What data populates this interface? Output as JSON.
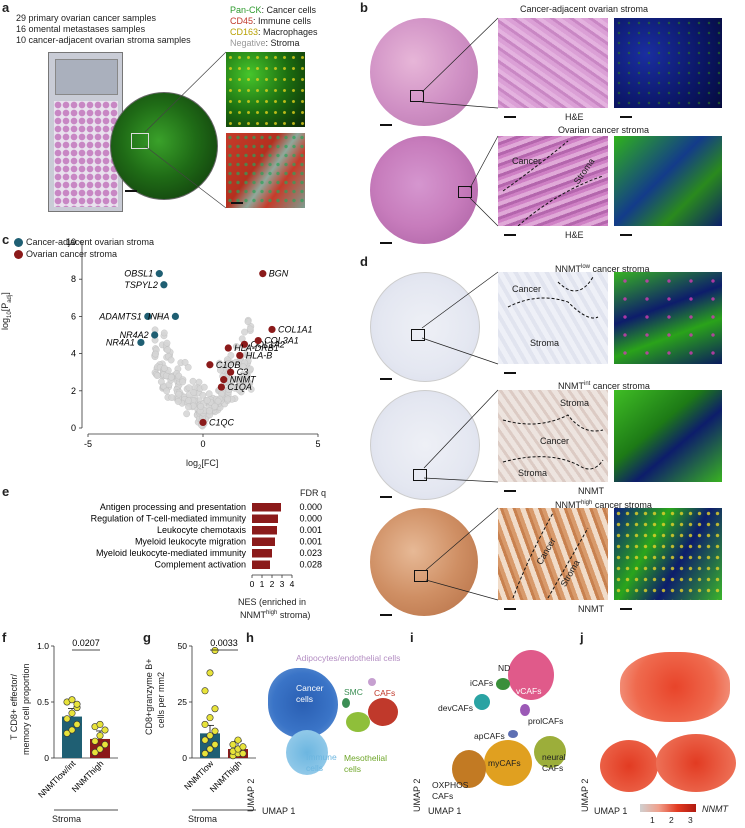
{
  "panels": {
    "a": "a",
    "b": "b",
    "c": "c",
    "d": "d",
    "e": "e",
    "f": "f",
    "g": "g",
    "h": "h",
    "i": "i",
    "j": "j"
  },
  "a": {
    "lines": [
      "29 primary ovarian cancer samples",
      "16 omental metastases samples",
      "10 cancer-adjacent ovarian stroma samples"
    ],
    "legend": [
      {
        "marker": "Pan-CK",
        "desc": ": Cancer cells",
        "color": "#2e9b2e"
      },
      {
        "marker": "CD45",
        "desc": ": Immune cells",
        "color": "#c0392b"
      },
      {
        "marker": "CD163",
        "desc": ": Macrophages",
        "color": "#b8a000"
      },
      {
        "marker": "Negative",
        "desc": ": Stroma",
        "color": "#999999"
      }
    ]
  },
  "b": {
    "title_top": "Cancer-adjacent ovarian stroma",
    "he_top": "H&E",
    "title_bottom": "Ovarian cancer stroma",
    "cancer": "Cancer",
    "stroma": "Stroma",
    "he_bottom": "H&E"
  },
  "c": {
    "legend": [
      {
        "label": "Cancer-adjacent ovarian stroma",
        "color": "#1f5f73"
      },
      {
        "label": "Ovarian cancer stroma",
        "color": "#8b1a1a"
      }
    ],
    "ylabel": "log10[Padj]",
    "xlabel": "log2[FC]"
  },
  "d": {
    "title_low": "NNMT",
    "title_low_sup": "low",
    "title_low_rest": " cancer stroma",
    "title_int": "NNMT",
    "title_int_sup": "int",
    "title_int_rest": " cancer stroma",
    "title_high": "NNMT",
    "title_high_sup": "high",
    "title_high_rest": " cancer stroma",
    "cancer": "Cancer",
    "stroma": "Stroma",
    "nnmt": "NNMT"
  },
  "e": {
    "header": "FDR q",
    "xlabel_line1": "NES (enriched in",
    "xlabel_line2": "NNMT",
    "xlabel_sup": "high",
    "xlabel_line2_rest": " stroma)"
  },
  "f": {
    "ylabel_line1": "T CD8+ effector/",
    "ylabel_line2": "memory cell proportion",
    "pvalue": "0.0207",
    "group": "Stroma"
  },
  "g": {
    "ylabel_line1": "CD8+granzyme B+",
    "ylabel_line2": "cells per mm2",
    "pvalue": "0.0033",
    "group": "Stroma"
  },
  "h": {
    "labels": [
      "Adipocytes/endothelial cells",
      "Cancer cells",
      "SMC",
      "CAFs",
      "Immune cells",
      "Mesothelial cells"
    ],
    "xlabel": "UMAP 1",
    "ylabel": "UMAP 2"
  },
  "i": {
    "labels": [
      "ND",
      "iCAFs",
      "vCAFs",
      "devCAFs",
      "prolCAFs",
      "apCAFs",
      "myCAFs",
      "neural CAFs",
      "OXPHOS CAFs"
    ],
    "xlabel": "UMAP 1",
    "ylabel": "UMAP 2"
  },
  "j": {
    "xlabel": "UMAP 1",
    "ylabel": "UMAP 2",
    "ticks": [
      "1",
      "2",
      "3"
    ],
    "gene": "NNMT"
  },
  "chart_data": [
    {
      "type": "scatter",
      "panel": "c",
      "xlabel": "log2[FC]",
      "ylabel": "log10[Padj]",
      "xlim": [
        -5,
        5
      ],
      "ylim": [
        0,
        10
      ],
      "xticks": [
        "-5",
        "0",
        "5"
      ],
      "yticks": [
        "0",
        "2",
        "4",
        "6",
        "8",
        "10"
      ],
      "series": [
        {
          "name": "Cancer-adjacent ovarian stroma",
          "color": "#1f5f73",
          "points": [
            {
              "label": "OBSL1",
              "x": -1.9,
              "y": 8.3
            },
            {
              "label": "TSPYL2",
              "x": -1.7,
              "y": 7.7
            },
            {
              "label": "ADAMTS1",
              "x": -2.4,
              "y": 6.0
            },
            {
              "label": "INHA",
              "x": -1.2,
              "y": 6.0
            },
            {
              "label": "NR4A2",
              "x": -2.1,
              "y": 5.0
            },
            {
              "label": "NR4A1",
              "x": -2.7,
              "y": 4.6
            }
          ]
        },
        {
          "name": "Ovarian cancer stroma",
          "color": "#8b1a1a",
          "points": [
            {
              "label": "BGN",
              "x": 2.6,
              "y": 8.3
            },
            {
              "label": "COL1A1",
              "x": 3.0,
              "y": 5.3
            },
            {
              "label": "COL1A2",
              "x": 1.8,
              "y": 4.5
            },
            {
              "label": "COL3A1",
              "x": 2.4,
              "y": 4.7
            },
            {
              "label": "HLA-DRB1",
              "x": 1.1,
              "y": 4.3
            },
            {
              "label": "HLA-B",
              "x": 1.6,
              "y": 3.9
            },
            {
              "label": "C1QB",
              "x": 0.3,
              "y": 3.4
            },
            {
              "label": "C3",
              "x": 1.2,
              "y": 3.0
            },
            {
              "label": "NNMT",
              "x": 0.9,
              "y": 2.6
            },
            {
              "label": "C1QA",
              "x": 0.8,
              "y": 2.2
            },
            {
              "label": "C1QC",
              "x": 0.0,
              "y": 0.3
            }
          ]
        }
      ],
      "background_points": "grey volcano cloud of non-significant genes"
    },
    {
      "type": "bar",
      "panel": "e",
      "orientation": "horizontal",
      "categories": [
        "Antigen processing and presentation",
        "Regulation of T-cell-mediated immunity",
        "Leukocyte chemotaxis",
        "Myeloid leukocyte migration",
        "Myeloid leukocyte-mediated immunity",
        "Complement activation"
      ],
      "values": [
        2.9,
        2.6,
        2.5,
        2.3,
        2.0,
        1.8
      ],
      "fdr_q": [
        "0.000",
        "0.000",
        "0.001",
        "0.001",
        "0.023",
        "0.028"
      ],
      "xlim": [
        0,
        4
      ],
      "xticks": [
        "0",
        "1",
        "2",
        "3",
        "4"
      ],
      "color": "#8b1a1a"
    },
    {
      "type": "bar",
      "panel": "f",
      "categories": [
        "NNMTlow/int",
        "NNMThigh"
      ],
      "values": [
        0.37,
        0.17
      ],
      "ylim": [
        0,
        1.0
      ],
      "yticks": [
        "0",
        "0.5",
        "1.0"
      ],
      "colors": [
        "#1f5f73",
        "#8b1a1a"
      ],
      "points": [
        [
          0.22,
          0.25,
          0.3,
          0.35,
          0.4,
          0.45,
          0.5,
          0.52,
          0.48
        ],
        [
          0.05,
          0.08,
          0.12,
          0.15,
          0.2,
          0.25,
          0.28,
          0.3
        ]
      ],
      "pvalue": "0.0207"
    },
    {
      "type": "bar",
      "panel": "g",
      "categories": [
        "NNMTlow",
        "NNMThigh"
      ],
      "values": [
        11,
        4
      ],
      "ylim": [
        0,
        50
      ],
      "yticks": [
        "0",
        "25",
        "50"
      ],
      "colors": [
        "#1f5f73",
        "#8b1a1a"
      ],
      "points": [
        [
          2,
          4,
          6,
          8,
          10,
          12,
          15,
          18,
          22,
          30,
          38,
          48
        ],
        [
          1,
          2,
          2,
          3,
          4,
          5,
          6,
          8
        ]
      ],
      "pvalue": "0.0033"
    }
  ]
}
